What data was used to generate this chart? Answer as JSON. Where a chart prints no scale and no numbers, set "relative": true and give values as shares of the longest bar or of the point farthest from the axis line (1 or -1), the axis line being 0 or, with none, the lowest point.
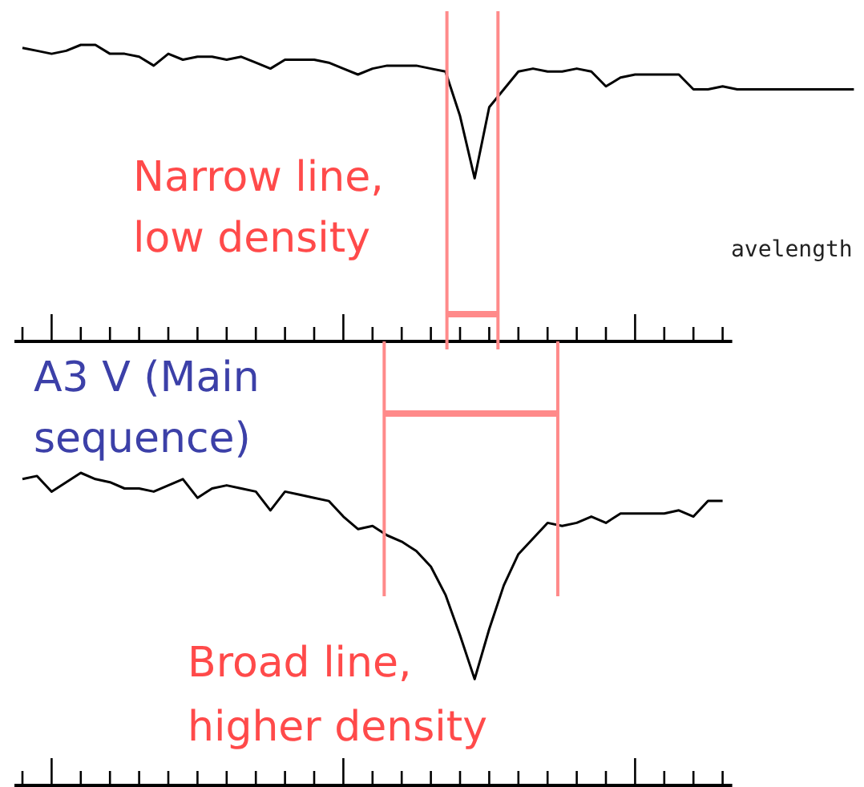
{
  "chart_data": [
    {
      "type": "line",
      "relative": true,
      "categories": [
        null,
        null,
        null,
        null,
        null,
        null,
        null,
        null,
        null,
        null,
        null,
        null,
        null,
        null,
        null,
        null,
        null,
        null,
        null,
        null,
        null,
        null,
        null,
        null,
        null,
        null,
        null,
        null,
        null,
        null,
        null,
        null,
        null,
        null,
        null,
        null,
        null,
        null,
        null,
        null,
        null,
        null,
        null,
        null,
        null,
        null,
        null,
        null,
        null,
        null,
        null,
        null,
        null,
        null,
        null,
        null,
        null,
        null
      ],
      "series": [
        {
          "color": "#000000",
          "values": [
            0.99,
            0.98,
            0.97,
            0.98,
            1.0,
            1.0,
            0.97,
            0.97,
            0.96,
            0.93,
            0.97,
            0.95,
            0.96,
            0.96,
            0.95,
            0.96,
            0.94,
            0.92,
            0.95,
            0.95,
            0.95,
            0.94,
            0.92,
            0.9,
            0.92,
            0.93,
            0.93,
            0.93,
            0.92,
            0.91,
            0.76,
            0.55,
            0.79,
            0.85,
            0.91,
            0.92,
            0.91,
            0.91,
            0.92,
            0.91,
            0.86,
            0.89,
            0.9,
            0.9,
            0.9,
            0.9,
            0.85,
            0.85,
            0.86,
            0.85,
            0.85,
            0.85,
            0.85,
            0.85,
            0.85,
            0.85,
            0.85,
            0.85
          ]
        }
      ],
      "annotations": [
        "Narrow line, low density",
        "avelength"
      ]
    },
    {
      "type": "line",
      "relative": true,
      "title": "A3 V (Main sequence)",
      "categories": [
        null,
        null,
        null,
        null,
        null,
        null,
        null,
        null,
        null,
        null,
        null,
        null,
        null,
        null,
        null,
        null,
        null,
        null,
        null,
        null,
        null,
        null,
        null,
        null,
        null,
        null,
        null,
        null,
        null,
        null,
        null,
        null,
        null,
        null,
        null,
        null,
        null,
        null,
        null,
        null,
        null,
        null,
        null,
        null,
        null,
        null,
        null,
        null,
        null
      ],
      "series": [
        {
          "color": "#000000",
          "values": [
            0.98,
            0.99,
            0.94,
            0.97,
            1.0,
            0.98,
            0.97,
            0.95,
            0.95,
            0.94,
            0.96,
            0.98,
            0.92,
            0.95,
            0.96,
            0.95,
            0.94,
            0.88,
            0.94,
            0.93,
            0.92,
            0.91,
            0.86,
            0.82,
            0.83,
            0.8,
            0.78,
            0.75,
            0.7,
            0.61,
            0.48,
            0.34,
            0.5,
            0.64,
            0.74,
            0.79,
            0.84,
            0.83,
            0.84,
            0.86,
            0.84,
            0.87,
            0.87,
            0.87,
            0.87,
            0.88,
            0.86,
            0.91,
            0.91
          ]
        }
      ],
      "annotations": [
        "Broad line, higher density"
      ]
    }
  ]
}
